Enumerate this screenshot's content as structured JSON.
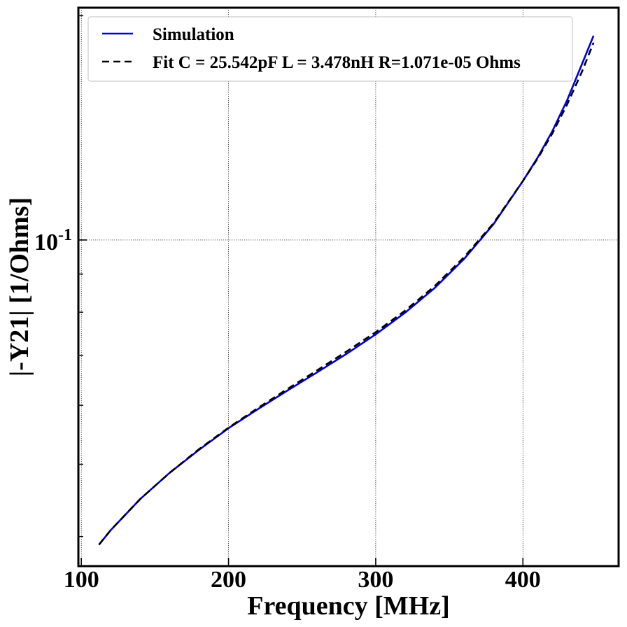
{
  "chart_data": {
    "type": "line",
    "xlabel": "Frequency [MHz]",
    "ylabel": "|-Y21| [1/Ohms]",
    "x_ticks": [
      100,
      200,
      300,
      400
    ],
    "y_major_tick": {
      "value": 0.1,
      "base": "10",
      "exponent": "-1"
    },
    "xlim": [
      98,
      465
    ],
    "ylim": [
      0.0365,
      0.205
    ],
    "y_scale": "log",
    "grid": true,
    "legend_position": "upper-left",
    "colors": {
      "simulation": "#0000dd",
      "fit": "#000000"
    },
    "series": [
      {
        "name": "Simulation",
        "style": "solid",
        "x": [
          112,
          120,
          140,
          160,
          180,
          200,
          220,
          240,
          260,
          280,
          300,
          320,
          340,
          360,
          380,
          400,
          410,
          420,
          430,
          440,
          448
        ],
        "y": [
          0.039,
          0.0408,
          0.0449,
          0.0487,
          0.0523,
          0.0559,
          0.0593,
          0.0628,
          0.0664,
          0.0703,
          0.0747,
          0.0799,
          0.0862,
          0.0943,
          0.105,
          0.12,
          0.129,
          0.14,
          0.154,
          0.172,
          0.188
        ]
      },
      {
        "name": "Fit C = 25.542pF L = 3.478nH R=1.071e-05 Ohms",
        "style": "dashed",
        "x": [
          112,
          120,
          140,
          160,
          180,
          200,
          220,
          240,
          260,
          280,
          300,
          320,
          340,
          360,
          380,
          400,
          410,
          420,
          430,
          440,
          448
        ],
        "y": [
          0.039,
          0.0408,
          0.0449,
          0.0487,
          0.0524,
          0.056,
          0.0595,
          0.0631,
          0.0668,
          0.0708,
          0.0752,
          0.0804,
          0.0867,
          0.0948,
          0.1053,
          0.12,
          0.1286,
          0.139,
          0.152,
          0.168,
          0.184
        ]
      }
    ]
  }
}
